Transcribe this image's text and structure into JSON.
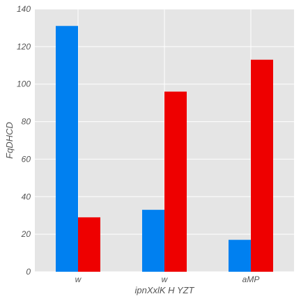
{
  "chart_data": {
    "type": "bar",
    "categories": [
      "w",
      "w",
      "aMP"
    ],
    "series": [
      {
        "values": [
          131,
          33,
          17
        ],
        "color": "#0080f0"
      },
      {
        "values": [
          29,
          96,
          113
        ],
        "color": "#ee0000"
      }
    ],
    "xlabel": "ipnXxlK H YZT",
    "ylabel": "FqDHCD",
    "ylim": [
      0,
      140
    ],
    "yticks": [
      "0",
      "20",
      "40",
      "60",
      "80",
      "100",
      "120",
      "140"
    ],
    "grid": true,
    "background": "#e5e5e5",
    "grid_color": "#ffffff"
  }
}
